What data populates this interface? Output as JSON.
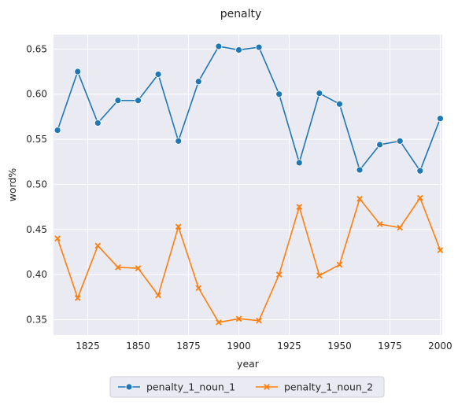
{
  "chart_data": {
    "type": "line",
    "title": "penalty",
    "xlabel": "year",
    "ylabel": "word%",
    "xlim": [
      1808,
      2001
    ],
    "ylim": [
      0.333,
      0.666
    ],
    "x_ticks": [
      1825,
      1850,
      1875,
      1900,
      1925,
      1950,
      1975,
      2000
    ],
    "y_ticks": [
      0.35,
      0.4,
      0.45,
      0.5,
      0.55,
      0.6,
      0.65
    ],
    "y_tick_labels": [
      "0.35",
      "0.40",
      "0.45",
      "0.50",
      "0.55",
      "0.60",
      "0.65"
    ],
    "grid": true,
    "legend_position": "bottom-center",
    "x": [
      1810,
      1820,
      1830,
      1840,
      1850,
      1860,
      1870,
      1880,
      1890,
      1900,
      1910,
      1920,
      1930,
      1940,
      1950,
      1960,
      1970,
      1980,
      1990,
      2000
    ],
    "series": [
      {
        "name": "penalty_1_noun_1",
        "color": "#1f77b4",
        "marker": "circle",
        "values": [
          0.56,
          0.625,
          0.568,
          0.593,
          0.593,
          0.622,
          0.548,
          0.614,
          0.653,
          0.649,
          0.652,
          0.6,
          0.524,
          0.601,
          0.589,
          0.516,
          0.544,
          0.548,
          0.515,
          0.573
        ]
      },
      {
        "name": "penalty_1_noun_2",
        "color": "#ff7f0e",
        "marker": "x",
        "values": [
          0.44,
          0.374,
          0.432,
          0.408,
          0.407,
          0.377,
          0.453,
          0.385,
          0.347,
          0.351,
          0.349,
          0.4,
          0.475,
          0.399,
          0.411,
          0.484,
          0.456,
          0.452,
          0.485,
          0.427
        ]
      }
    ]
  }
}
